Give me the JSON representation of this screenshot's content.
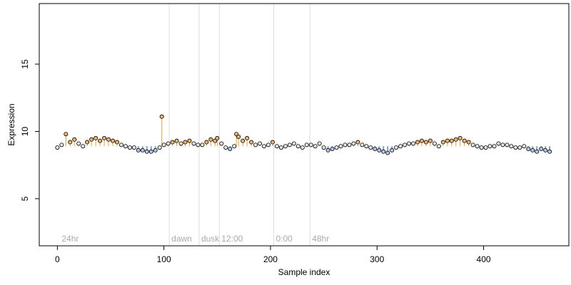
{
  "chart_data": {
    "type": "scatter",
    "title": "",
    "xlabel": "Sample index",
    "ylabel": "Expression",
    "xlim": [
      -17,
      480
    ],
    "ylim": [
      1.5,
      19.5
    ],
    "x_ticks": [
      0,
      100,
      200,
      300,
      400
    ],
    "y_ticks": [
      5,
      10,
      15
    ],
    "grid": false,
    "legend": "none",
    "colors": {
      "point_fill_high": "#f2b46a",
      "point_fill_low": "#b4c6e6",
      "point_fill_neutral": "#e6e6e6",
      "point_stroke": "#000000",
      "up_segment": "#e8a030",
      "down_segment": "#7f9fd4",
      "phase_line": "#dddddd",
      "phase_label": "#aaaaaa",
      "axis": "#000000"
    },
    "phase_markers": [
      {
        "x": 105,
        "label": "dawn"
      },
      {
        "x": 133,
        "label": "dusk"
      },
      {
        "x": 152,
        "label": "12:00"
      },
      {
        "x": 203,
        "label": "0:00"
      },
      {
        "x": 237,
        "label": "48hr"
      }
    ],
    "annotations": [
      {
        "x": 2,
        "label": "24hr"
      }
    ],
    "series": [
      {
        "baseline": 8.9,
        "x": [
          0,
          4,
          8,
          12,
          16,
          20,
          24,
          28,
          32,
          36,
          40,
          44,
          48,
          52,
          56,
          60,
          64,
          68,
          72,
          76,
          80,
          84,
          88,
          92,
          96,
          98,
          100,
          104,
          108,
          112,
          116,
          120,
          124,
          128,
          132,
          136,
          140,
          144,
          148,
          150,
          154,
          158,
          162,
          166,
          168,
          170,
          174,
          178,
          182,
          186,
          190,
          194,
          198,
          202,
          206,
          210,
          214,
          218,
          222,
          226,
          230,
          234,
          238,
          242,
          246,
          250,
          254,
          258,
          262,
          266,
          270,
          274,
          278,
          282,
          286,
          290,
          294,
          298,
          302,
          306,
          310,
          314,
          318,
          322,
          326,
          330,
          334,
          338,
          342,
          346,
          350,
          354,
          358,
          362,
          366,
          370,
          374,
          378,
          382,
          386,
          390,
          394,
          398,
          402,
          406,
          410,
          414,
          418,
          422,
          426,
          430,
          434,
          438,
          442,
          446,
          450,
          454,
          458,
          462
        ],
        "values": [
          8.8,
          9.0,
          9.8,
          9.2,
          9.4,
          9.1,
          8.9,
          9.2,
          9.4,
          9.5,
          9.3,
          9.5,
          9.4,
          9.3,
          9.2,
          9.0,
          8.9,
          8.8,
          8.8,
          8.6,
          8.6,
          8.5,
          8.5,
          8.6,
          8.8,
          11.1,
          9.0,
          9.1,
          9.2,
          9.3,
          9.1,
          9.2,
          9.3,
          9.1,
          9.0,
          9.0,
          9.2,
          9.4,
          9.3,
          9.5,
          9.1,
          8.8,
          8.7,
          8.9,
          9.8,
          9.6,
          9.3,
          9.5,
          9.2,
          9.0,
          9.1,
          8.9,
          9.0,
          9.2,
          8.9,
          8.8,
          8.9,
          9.0,
          9.1,
          8.9,
          8.8,
          9.0,
          9.0,
          8.9,
          9.1,
          8.8,
          8.6,
          8.7,
          8.8,
          8.9,
          9.0,
          9.0,
          9.1,
          9.2,
          9.0,
          8.9,
          8.8,
          8.7,
          8.6,
          8.5,
          8.4,
          8.6,
          8.8,
          8.9,
          9.0,
          9.1,
          9.1,
          9.2,
          9.3,
          9.2,
          9.3,
          9.1,
          8.9,
          9.2,
          9.3,
          9.3,
          9.4,
          9.5,
          9.3,
          9.2,
          9.0,
          8.9,
          8.8,
          8.8,
          8.9,
          8.9,
          9.1,
          9.0,
          9.0,
          8.9,
          8.8,
          8.8,
          8.9,
          8.7,
          8.6,
          8.5,
          8.7,
          8.6,
          8.5
        ]
      }
    ]
  }
}
